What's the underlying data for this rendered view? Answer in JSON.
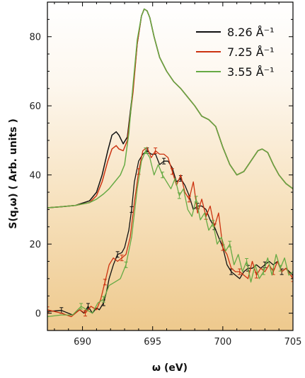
{
  "chart_data": {
    "type": "line",
    "xlabel": "ω (eV)",
    "ylabel": "S(q,ω) ( Arb. units )",
    "xlim": [
      687.5,
      705
    ],
    "ylim": [
      -5,
      90
    ],
    "x_ticks": [
      690,
      695,
      700,
      705
    ],
    "y_ticks": [
      0,
      20,
      40,
      60,
      80
    ],
    "grid": false,
    "legend_position": "top-right",
    "background": "gradient from white (top) to tan (bottom)",
    "series": [
      {
        "name": "8.26 Å⁻¹",
        "color": "#111111",
        "theory_x": [
          687.5,
          688.5,
          689.5,
          690.5,
          691.0,
          691.4,
          691.8,
          692.1,
          692.4,
          692.6,
          692.9,
          693.2,
          693.6,
          693.9,
          694.2,
          694.4,
          694.6,
          694.8,
          695.1,
          695.5,
          696.0,
          696.5,
          697.0,
          697.5,
          698.0,
          698.5,
          699.0,
          699.5,
          700.0,
          700.5,
          701.0,
          701.5,
          702.0,
          702.5,
          702.8,
          703.2,
          703.6,
          704.0,
          704.5,
          705.0
        ],
        "theory_y": [
          30.5,
          30.8,
          31.2,
          32.5,
          35,
          40,
          47,
          51.5,
          52.5,
          51.5,
          49,
          51,
          65,
          78,
          86,
          88,
          87.5,
          85.5,
          80,
          74,
          70,
          67,
          65,
          62.5,
          60,
          57,
          56,
          54,
          48,
          43,
          40,
          41,
          44,
          47,
          47.5,
          46.5,
          43,
          40,
          37.5,
          36
        ],
        "exp_x": [
          687.5,
          688.5,
          689.3,
          689.8,
          690.1,
          690.4,
          690.7,
          691.0,
          691.2,
          691.5,
          691.7,
          691.9,
          692.2,
          692.5,
          692.8,
          693.0,
          693.3,
          693.5,
          693.7,
          694.0,
          694.3,
          694.6,
          694.9,
          695.2,
          695.5,
          695.8,
          696.1,
          696.4,
          696.7,
          697.0,
          697.3,
          697.6,
          697.9,
          698.2,
          698.5,
          698.8,
          699.1,
          699.4,
          699.7,
          700.0,
          700.3,
          700.6,
          700.9,
          701.2,
          701.5,
          701.8,
          702.1,
          702.4,
          702.7,
          703.0,
          703.3,
          703.6,
          703.9,
          704.2,
          704.5,
          705.0
        ],
        "exp_y": [
          0.5,
          0.8,
          -0.5,
          1,
          0,
          2,
          0,
          1.5,
          1,
          3,
          6,
          10,
          14,
          17,
          17.5,
          19,
          24,
          30,
          38,
          44,
          46,
          47,
          46,
          46,
          43,
          44,
          44,
          42,
          38,
          39,
          37,
          34,
          30,
          31,
          31,
          30,
          27,
          25,
          22,
          19,
          14,
          12,
          11,
          10,
          12,
          13,
          13,
          14,
          13,
          14,
          15,
          14,
          15,
          12,
          13,
          11
        ]
      },
      {
        "name": "7.25 Å⁻¹",
        "color": "#cc3311",
        "theory_x": [
          687.5,
          688.5,
          689.5,
          690.5,
          691.0,
          691.4,
          691.8,
          692.1,
          692.4,
          692.6,
          692.9,
          693.2,
          693.6,
          693.9,
          694.2,
          694.4,
          694.6,
          694.8,
          695.1,
          695.5,
          696.0,
          696.5,
          697.0,
          697.5,
          698.0,
          698.5,
          699.0,
          699.5,
          700.0,
          700.5,
          701.0,
          701.5,
          702.0,
          702.5,
          702.8,
          703.2,
          703.6,
          704.0,
          704.5,
          705.0
        ],
        "theory_y": [
          30.5,
          30.8,
          31.2,
          32,
          34,
          38,
          44,
          47.5,
          48.5,
          47.5,
          47,
          50,
          64,
          78,
          86,
          88,
          87.5,
          85.5,
          80,
          74,
          70,
          67,
          65,
          62.5,
          60,
          57,
          56,
          54,
          48,
          43,
          40,
          41,
          44,
          47,
          47.5,
          46.5,
          43,
          40,
          37.5,
          36
        ],
        "exp_x": [
          687.5,
          688.5,
          689.2,
          689.8,
          690.2,
          690.6,
          691.0,
          691.3,
          691.6,
          691.9,
          692.2,
          692.5,
          692.8,
          693.1,
          693.4,
          693.7,
          694.0,
          694.3,
          694.6,
          694.9,
          695.2,
          695.5,
          695.8,
          696.1,
          696.4,
          696.7,
          697.0,
          697.3,
          697.6,
          697.9,
          698.2,
          698.5,
          698.8,
          699.1,
          699.4,
          699.7,
          700.0,
          700.3,
          700.6,
          700.9,
          701.2,
          701.5,
          701.8,
          702.1,
          702.4,
          702.7,
          703.0,
          703.3,
          703.6,
          703.9,
          704.2,
          704.5,
          705.0
        ],
        "exp_y": [
          1,
          0,
          -1,
          1,
          0,
          2,
          1,
          4,
          9,
          14,
          16,
          15,
          16,
          17,
          22,
          32,
          41,
          47,
          48,
          45,
          47,
          46,
          46,
          45,
          41,
          37,
          40,
          35,
          33,
          38,
          29,
          33,
          28,
          31,
          25,
          29,
          19,
          17,
          13,
          12,
          12,
          11,
          10,
          15,
          11,
          13,
          12,
          14,
          12,
          15,
          12,
          13,
          10
        ]
      },
      {
        "name": "3.55 Å⁻¹",
        "color": "#66aa44",
        "theory_x": [
          687.5,
          688.5,
          689.5,
          690.5,
          691.0,
          691.5,
          691.9,
          692.3,
          692.7,
          693.0,
          693.3,
          693.6,
          693.9,
          694.2,
          694.4,
          694.6,
          694.8,
          695.1,
          695.5,
          696.0,
          696.5,
          697.0,
          697.5,
          698.0,
          698.5,
          699.0,
          699.5,
          700.0,
          700.5,
          701.0,
          701.5,
          702.0,
          702.5,
          702.8,
          703.2,
          703.6,
          704.0,
          704.5,
          705.0
        ],
        "theory_y": [
          30.5,
          30.8,
          31.2,
          32,
          33,
          34.5,
          36,
          38,
          40,
          43,
          52,
          66,
          79,
          86,
          88,
          87.5,
          85.5,
          80,
          74,
          70,
          67,
          65,
          62.5,
          60,
          57,
          56,
          54,
          48,
          43,
          40,
          41,
          44,
          47,
          47.5,
          46.5,
          43,
          40,
          37.5,
          36
        ],
        "exp_x": [
          687.5,
          688.5,
          689.3,
          689.9,
          690.3,
          690.7,
          691.1,
          691.5,
          691.9,
          692.3,
          692.7,
          693.1,
          693.5,
          693.9,
          694.2,
          694.5,
          694.8,
          695.1,
          695.4,
          695.7,
          696.0,
          696.3,
          696.6,
          696.9,
          697.2,
          697.5,
          697.8,
          698.1,
          698.4,
          698.7,
          699.0,
          699.3,
          699.6,
          699.9,
          700.2,
          700.5,
          700.8,
          701.1,
          701.4,
          701.7,
          702.0,
          702.3,
          702.6,
          702.9,
          703.2,
          703.5,
          703.8,
          704.1,
          704.4,
          704.7,
          705.0
        ],
        "exp_y": [
          -1,
          -0.5,
          -0.5,
          2,
          1,
          0,
          3,
          4,
          8,
          9,
          10,
          14,
          22,
          36,
          44,
          47,
          45,
          40,
          43,
          40,
          38,
          36,
          39,
          34,
          36,
          30,
          28,
          33,
          27,
          29,
          24,
          26,
          20,
          22,
          18,
          20,
          14,
          17,
          12,
          15,
          9,
          14,
          10,
          12,
          16,
          11,
          17,
          13,
          16,
          11,
          12
        ]
      }
    ]
  }
}
